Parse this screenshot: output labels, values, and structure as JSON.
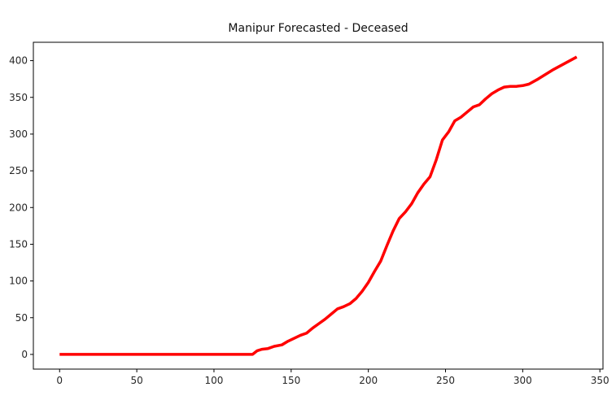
{
  "chart_data": {
    "type": "line",
    "title": "Manipur Forecasted - Deceased",
    "xlabel": "",
    "ylabel": "",
    "xlim": [
      -17,
      352
    ],
    "ylim": [
      -20,
      425
    ],
    "x_ticks": [
      0,
      50,
      100,
      150,
      200,
      250,
      300,
      350
    ],
    "y_ticks": [
      0,
      50,
      100,
      150,
      200,
      250,
      300,
      350,
      400
    ],
    "grid": false,
    "legend": "none",
    "series": [
      {
        "color": "#ff0000",
        "x": [
          0,
          50,
          100,
          125,
          128,
          131,
          135,
          139,
          144,
          148,
          152,
          156,
          160,
          164,
          168,
          172,
          176,
          180,
          184,
          188,
          192,
          196,
          200,
          204,
          208,
          212,
          216,
          220,
          224,
          228,
          232,
          236,
          240,
          244,
          248,
          252,
          256,
          260,
          264,
          268,
          272,
          276,
          280,
          284,
          288,
          292,
          296,
          300,
          304,
          310,
          320,
          335
        ],
        "y": [
          0,
          0,
          0,
          0,
          5,
          7,
          8,
          11,
          13,
          18,
          22,
          26,
          29,
          36,
          42,
          48,
          55,
          62,
          65,
          69,
          76,
          86,
          98,
          113,
          127,
          148,
          168,
          185,
          194,
          205,
          220,
          232,
          242,
          265,
          292,
          303,
          318,
          323,
          330,
          337,
          340,
          348,
          355,
          360,
          364,
          365,
          365,
          366,
          368,
          375,
          388,
          405
        ]
      }
    ]
  }
}
